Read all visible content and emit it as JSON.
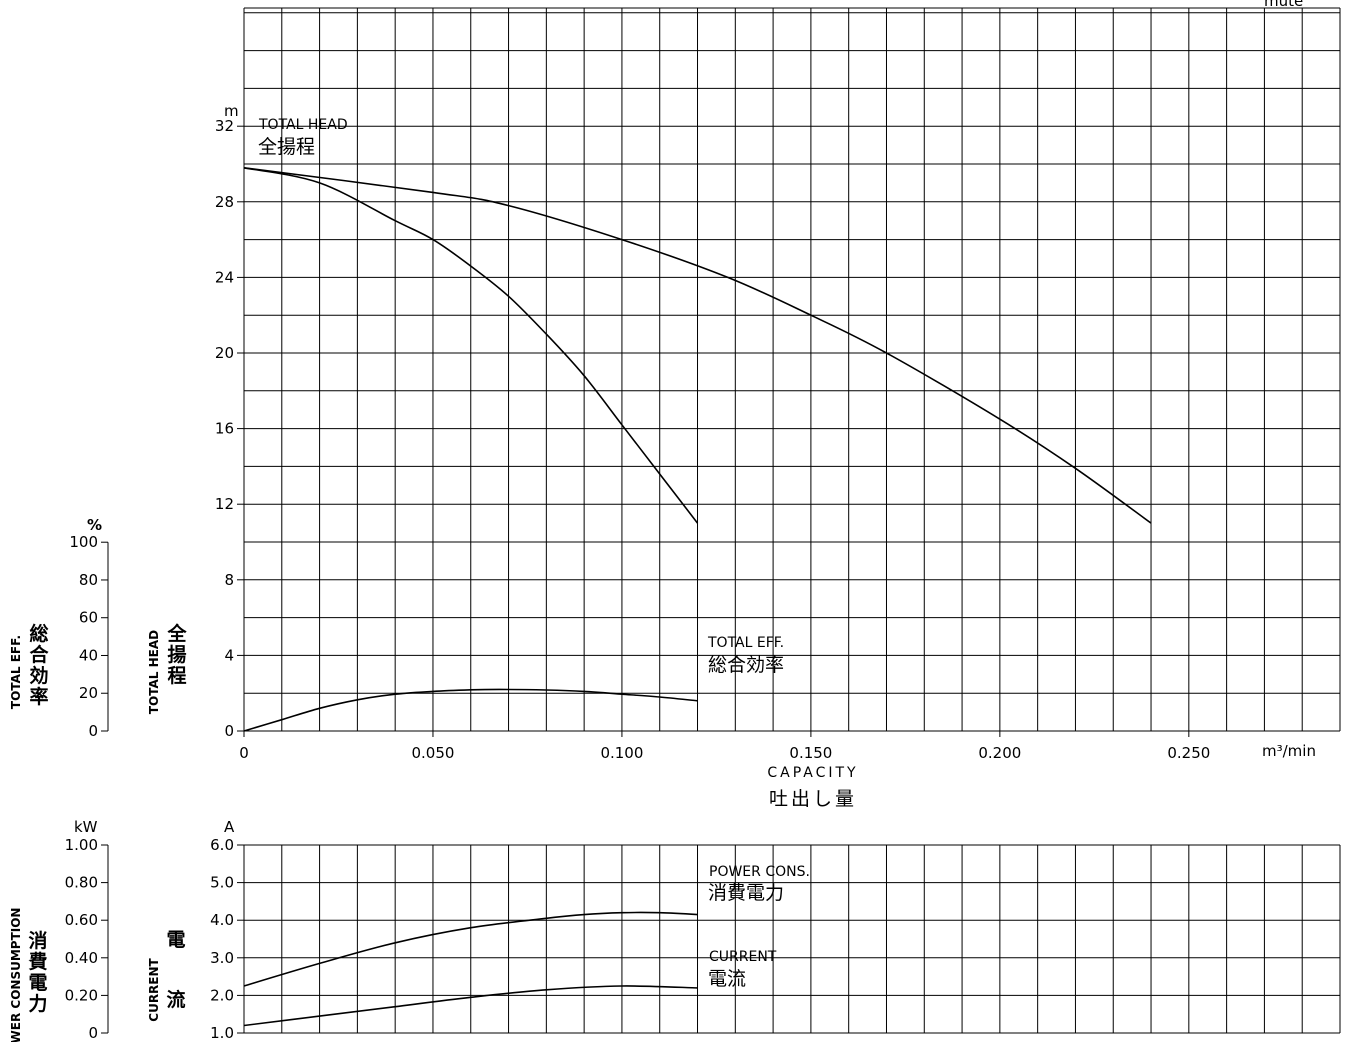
{
  "chart_data": [
    {
      "type": "line",
      "x_unit": "m³/min",
      "x_ticks": [
        "0",
        "0.050",
        "0.100",
        "0.150",
        "0.200",
        "0.250"
      ],
      "xlim": [
        0,
        0.29
      ],
      "xlabel_en": "CAPACITY",
      "xlabel_jp": "吐出し量",
      "corner_text": "mute",
      "head_axis": {
        "unit": "m",
        "ylim": [
          0,
          32
        ],
        "ticks": [
          "0",
          "4",
          "8",
          "12",
          "16",
          "20",
          "24",
          "28",
          "32"
        ],
        "label_en": "TOTAL HEAD",
        "label_jp": "全揚程"
      },
      "eff_axis": {
        "unit": "%",
        "ylim": [
          0,
          100
        ],
        "ticks": [
          "0",
          "20",
          "40",
          "60",
          "80",
          "100"
        ],
        "label_en": "TOTAL EFF.",
        "label_jp": "総合効率"
      },
      "series": [
        {
          "key": "head_a",
          "axis": "head",
          "x": [
            0,
            0.02,
            0.04,
            0.05,
            0.06,
            0.07,
            0.08,
            0.09,
            0.1,
            0.11,
            0.12
          ],
          "y": [
            29.8,
            29.0,
            27.0,
            26.0,
            24.6,
            23.0,
            21.0,
            18.8,
            16.2,
            13.6,
            11.0
          ]
        },
        {
          "key": "head_b",
          "axis": "head",
          "x": [
            0,
            0.05,
            0.07,
            0.1,
            0.128,
            0.15,
            0.17,
            0.2,
            0.22,
            0.24
          ],
          "y": [
            29.8,
            28.5,
            27.8,
            26.0,
            24.0,
            22.0,
            20.0,
            16.5,
            13.9,
            11.0
          ]
        },
        {
          "key": "eff",
          "axis": "eff",
          "name": "TOTAL EFF.",
          "name_jp": "総合効率",
          "x": [
            0,
            0.01,
            0.02,
            0.03,
            0.04,
            0.05,
            0.06,
            0.07,
            0.08,
            0.09,
            0.1,
            0.11,
            0.12
          ],
          "y": [
            0,
            6.0,
            12.0,
            16.5,
            19.5,
            21.0,
            21.8,
            22.0,
            21.7,
            21.0,
            19.5,
            18.0,
            16.0
          ]
        }
      ]
    },
    {
      "type": "line",
      "xlim": [
        0,
        0.29
      ],
      "power_axis": {
        "unit": "kW",
        "ylim": [
          0,
          1.0
        ],
        "ticks": [
          "0",
          "0.20",
          "0.40",
          "0.60",
          "0.80",
          "1.00"
        ],
        "label_en": "POWER CONSUMPTION",
        "label_jp": "消費電力"
      },
      "current_axis": {
        "unit": "A",
        "ylim": [
          1.0,
          6.0
        ],
        "ticks": [
          "1.0",
          "2.0",
          "3.0",
          "4.0",
          "5.0",
          "6.0"
        ],
        "label_en": "CURRENT",
        "label_jp": "電流"
      },
      "series": [
        {
          "key": "power",
          "axis": "power",
          "name": "POWER CONS.",
          "name_jp": "消費電力",
          "x": [
            0,
            0.02,
            0.04,
            0.06,
            0.08,
            0.09,
            0.1,
            0.11,
            0.12
          ],
          "y": [
            0.25,
            0.37,
            0.48,
            0.56,
            0.61,
            0.63,
            0.64,
            0.64,
            0.63
          ]
        },
        {
          "key": "current",
          "axis": "current",
          "name": "CURRENT",
          "name_jp": "電流",
          "x": [
            0,
            0.02,
            0.04,
            0.06,
            0.08,
            0.1,
            0.12
          ],
          "y": [
            1.2,
            1.45,
            1.7,
            1.95,
            2.15,
            2.25,
            2.2
          ]
        }
      ]
    }
  ]
}
